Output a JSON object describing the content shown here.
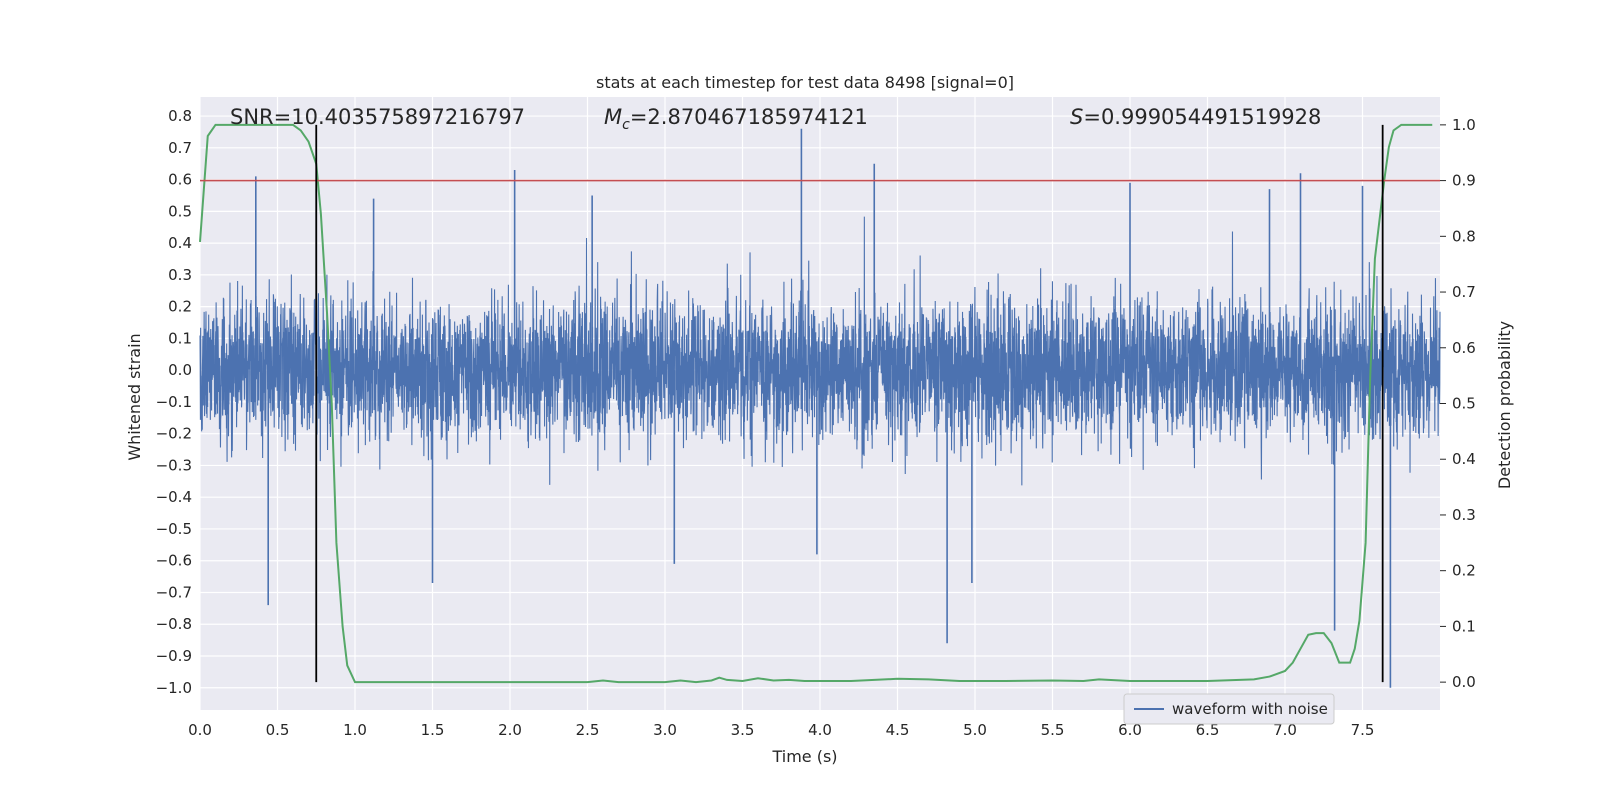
{
  "chart_data": {
    "type": "line",
    "title": "stats at each timestep for test data 8498 [signal=0]",
    "xlabel": "Time (s)",
    "ylabel_left": "Whitened strain",
    "ylabel_right": "Detection probability",
    "xlim": [
      0.0,
      8.0
    ],
    "ylim_left": [
      -1.07,
      0.86
    ],
    "ylim_right": [
      -0.05,
      1.05
    ],
    "x_ticks": [
      "0.0",
      "0.5",
      "1.0",
      "1.5",
      "2.0",
      "2.5",
      "3.0",
      "3.5",
      "4.0",
      "4.5",
      "5.0",
      "5.5",
      "6.0",
      "6.5",
      "7.0",
      "7.5"
    ],
    "y_ticks_left": [
      "0.8",
      "0.7",
      "0.6",
      "0.5",
      "0.4",
      "0.3",
      "0.2",
      "0.1",
      "0.0",
      "−0.1",
      "−0.2",
      "−0.3",
      "−0.4",
      "−0.5",
      "−0.6",
      "−0.7",
      "−0.8",
      "−0.9",
      "−1.0"
    ],
    "y_ticks_right": [
      "1.0",
      "0.9",
      "0.8",
      "0.7",
      "0.6",
      "0.5",
      "0.4",
      "0.3",
      "0.2",
      "0.1",
      "0.0"
    ],
    "grid": true,
    "legend_location": "lower right",
    "annotations": {
      "snr": "SNR=10.403575897216797",
      "mc_symbol": "M",
      "mc_sub": "c",
      "mc_value": "=2.870467185974121",
      "s_symbol": "S",
      "s_value": "=0.999054491519928"
    },
    "threshold": 0.9,
    "markers_x": [
      0.75,
      7.63
    ],
    "series": [
      {
        "name": "waveform with noise",
        "axis": "left",
        "style": "dense noise trace",
        "noise_sigma": 0.11,
        "peaks": [
          {
            "x": 0.36,
            "y": 0.61
          },
          {
            "x": 0.44,
            "y": -0.74
          },
          {
            "x": 0.75,
            "y": 0.57
          },
          {
            "x": 1.12,
            "y": 0.54
          },
          {
            "x": 1.5,
            "y": -0.67
          },
          {
            "x": 2.03,
            "y": 0.63
          },
          {
            "x": 2.53,
            "y": 0.55
          },
          {
            "x": 3.06,
            "y": -0.61
          },
          {
            "x": 3.88,
            "y": 0.76
          },
          {
            "x": 3.98,
            "y": -0.58
          },
          {
            "x": 4.35,
            "y": 0.65
          },
          {
            "x": 4.82,
            "y": -0.86
          },
          {
            "x": 4.98,
            "y": -0.67
          },
          {
            "x": 6.0,
            "y": 0.59
          },
          {
            "x": 6.9,
            "y": 0.57
          },
          {
            "x": 7.1,
            "y": 0.62
          },
          {
            "x": 7.32,
            "y": -0.82
          },
          {
            "x": 7.5,
            "y": 0.58
          },
          {
            "x": 7.68,
            "y": -1.0
          }
        ]
      },
      {
        "name": "",
        "axis": "right",
        "color": "#55a868",
        "x": [
          0.0,
          0.05,
          0.1,
          0.15,
          0.2,
          0.3,
          0.4,
          0.5,
          0.55,
          0.6,
          0.65,
          0.7,
          0.75,
          0.78,
          0.82,
          0.85,
          0.88,
          0.92,
          0.95,
          1.0,
          1.1,
          1.3,
          1.5,
          2.0,
          2.5,
          2.6,
          2.7,
          3.0,
          3.1,
          3.2,
          3.3,
          3.35,
          3.4,
          3.5,
          3.6,
          3.7,
          3.8,
          3.9,
          4.0,
          4.2,
          4.5,
          4.7,
          4.9,
          5.2,
          5.5,
          5.7,
          5.8,
          6.0,
          6.5,
          6.8,
          6.9,
          7.0,
          7.05,
          7.1,
          7.15,
          7.2,
          7.25,
          7.3,
          7.35,
          7.42,
          7.45,
          7.48,
          7.52,
          7.55,
          7.58,
          7.61,
          7.64,
          7.67,
          7.7,
          7.75,
          7.8,
          7.87,
          7.95
        ],
        "values": [
          0.79,
          0.98,
          1.0,
          1.0,
          1.0,
          1.0,
          1.0,
          1.0,
          1.0,
          1.0,
          0.99,
          0.97,
          0.93,
          0.84,
          0.66,
          0.5,
          0.25,
          0.1,
          0.03,
          0.0,
          0.0,
          0.0,
          0.0,
          0.0,
          0.0,
          0.003,
          0.0,
          0.0,
          0.003,
          0.0,
          0.003,
          0.008,
          0.004,
          0.002,
          0.007,
          0.003,
          0.004,
          0.002,
          0.002,
          0.002,
          0.006,
          0.005,
          0.002,
          0.002,
          0.003,
          0.002,
          0.005,
          0.002,
          0.002,
          0.005,
          0.01,
          0.02,
          0.035,
          0.06,
          0.085,
          0.088,
          0.088,
          0.07,
          0.035,
          0.035,
          0.06,
          0.11,
          0.25,
          0.55,
          0.76,
          0.83,
          0.9,
          0.96,
          0.99,
          1.0,
          1.0,
          1.0,
          1.0
        ]
      }
    ]
  }
}
